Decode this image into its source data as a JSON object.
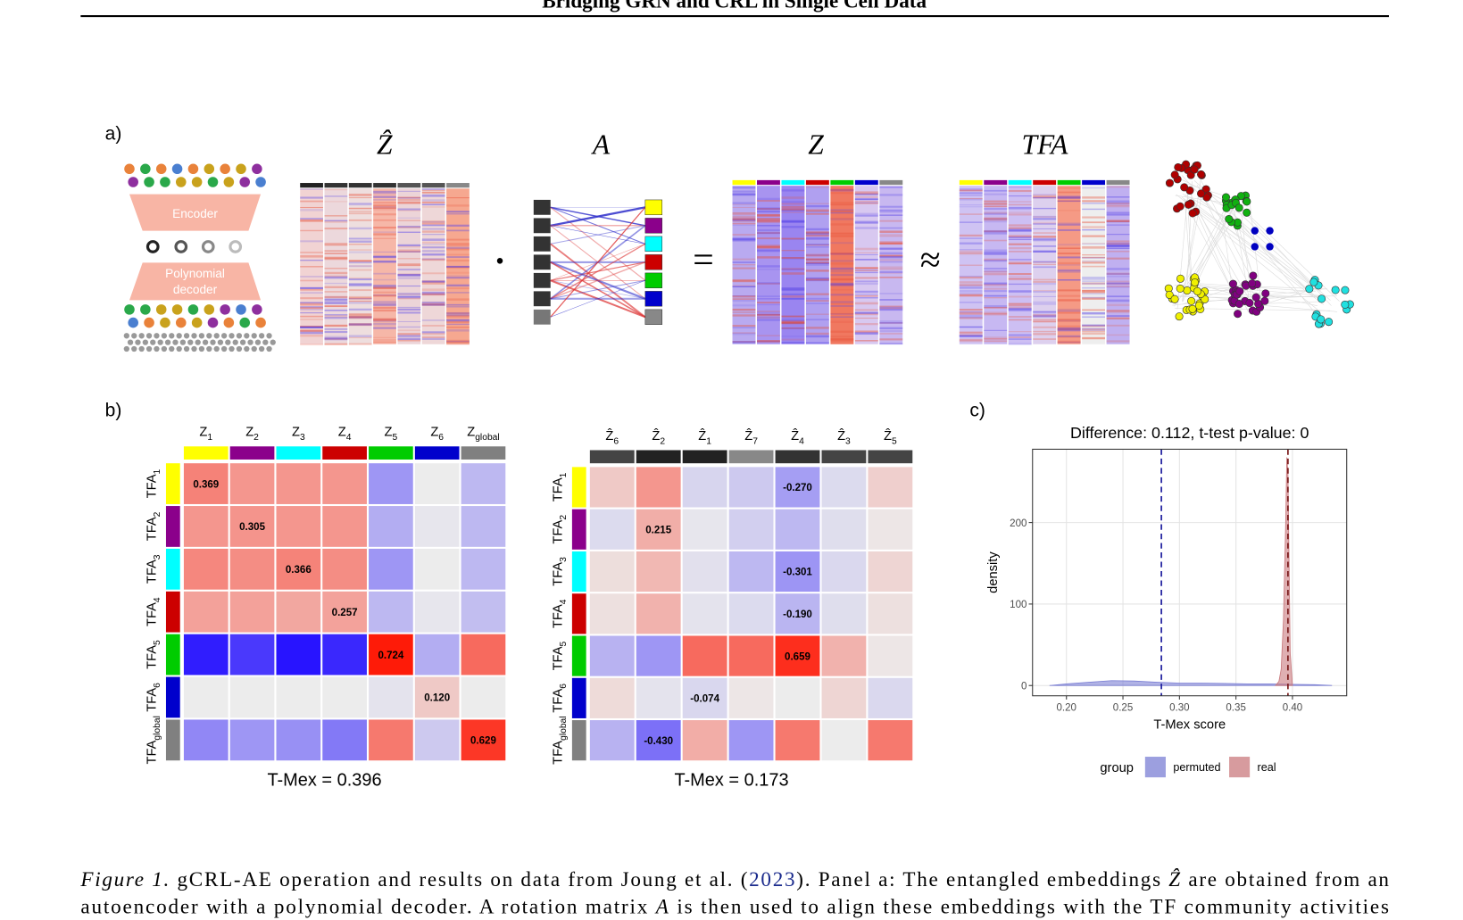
{
  "header": {
    "title": "Bridging GRN and CRL in Single Cell Data"
  },
  "panel_labels": [
    "a)",
    "b)",
    "c)"
  ],
  "figure_a": {
    "encoder": "Encoder",
    "decoder": [
      "Polynomial",
      "decoder"
    ],
    "titles": [
      "Ẑ",
      "A",
      "Z",
      "TFA"
    ],
    "operators": [
      "•",
      "=",
      "≈"
    ]
  },
  "chart_data": [
    {
      "type": "heatmap",
      "x_labels": [
        {
          "base": "Z",
          "sub": "1"
        },
        {
          "base": "Z",
          "sub": "2"
        },
        {
          "base": "Z",
          "sub": "3"
        },
        {
          "base": "Z",
          "sub": "4"
        },
        {
          "base": "Z",
          "sub": "5"
        },
        {
          "base": "Z",
          "sub": "6"
        },
        {
          "base": "Z",
          "sub": "global"
        }
      ],
      "y_labels": [
        {
          "base": "TFA",
          "sub": "1"
        },
        {
          "base": "TFA",
          "sub": "2"
        },
        {
          "base": "TFA",
          "sub": "3"
        },
        {
          "base": "TFA",
          "sub": "4"
        },
        {
          "base": "TFA",
          "sub": "5"
        },
        {
          "base": "TFA",
          "sub": "6"
        },
        {
          "base": "TFA",
          "sub": "global"
        }
      ],
      "col_colors": [
        "#ffff00",
        "#8b008b",
        "#00ffff",
        "#cc0000",
        "#00cc00",
        "#0000cc",
        "#808080"
      ],
      "row_colors": [
        "#ffff00",
        "#8b008b",
        "#00ffff",
        "#cc0000",
        "#00cc00",
        "#0000cc",
        "#808080"
      ],
      "color_range": [
        -0.75,
        0.75
      ],
      "values": [
        [
          0.369,
          0.3,
          0.3,
          0.3,
          -0.3,
          0.0,
          -0.18
        ],
        [
          0.3,
          0.305,
          0.3,
          0.3,
          -0.22,
          -0.02,
          -0.18
        ],
        [
          0.35,
          0.33,
          0.366,
          0.33,
          -0.3,
          0.0,
          -0.18
        ],
        [
          0.26,
          0.26,
          0.24,
          0.257,
          -0.18,
          -0.02,
          -0.16
        ],
        [
          -0.72,
          -0.62,
          -0.75,
          -0.68,
          0.724,
          -0.22,
          0.45
        ],
        [
          0.0,
          0.0,
          0.0,
          0.0,
          -0.03,
          0.12,
          0.0
        ],
        [
          -0.35,
          -0.3,
          -0.32,
          -0.4,
          0.4,
          -0.12,
          0.629
        ]
      ],
      "value_labels": [
        [
          "0.369",
          null,
          null,
          null,
          null,
          null,
          null
        ],
        [
          null,
          "0.305",
          null,
          null,
          null,
          null,
          null
        ],
        [
          null,
          null,
          "0.366",
          null,
          null,
          null,
          null
        ],
        [
          null,
          null,
          null,
          "0.257",
          null,
          null,
          null
        ],
        [
          null,
          null,
          null,
          null,
          "0.724",
          null,
          null
        ],
        [
          null,
          null,
          null,
          null,
          null,
          "0.120",
          null
        ],
        [
          null,
          null,
          null,
          null,
          null,
          null,
          "0.629"
        ]
      ],
      "caption": "T-Mex = 0.396"
    },
    {
      "type": "heatmap",
      "x_labels": [
        {
          "base": "Ẑ",
          "sub": "6"
        },
        {
          "base": "Ẑ",
          "sub": "2"
        },
        {
          "base": "Ẑ",
          "sub": "1"
        },
        {
          "base": "Ẑ",
          "sub": "7"
        },
        {
          "base": "Ẑ",
          "sub": "4"
        },
        {
          "base": "Ẑ",
          "sub": "3"
        },
        {
          "base": "Ẑ",
          "sub": "5"
        }
      ],
      "y_labels": [
        {
          "base": "TFA",
          "sub": "1"
        },
        {
          "base": "TFA",
          "sub": "2"
        },
        {
          "base": "TFA",
          "sub": "3"
        },
        {
          "base": "TFA",
          "sub": "4"
        },
        {
          "base": "TFA",
          "sub": "5"
        },
        {
          "base": "TFA",
          "sub": "6"
        },
        {
          "base": "TFA",
          "sub": "global"
        }
      ],
      "col_colors": [
        "#444444",
        "#222222",
        "#222222",
        "#888888",
        "#333333",
        "#444444",
        "#444444"
      ],
      "row_colors": [
        "#ffff00",
        "#8b008b",
        "#00ffff",
        "#cc0000",
        "#00cc00",
        "#0000cc",
        "#808080"
      ],
      "color_range": [
        -0.75,
        0.75
      ],
      "values": [
        [
          0.12,
          0.3,
          -0.08,
          -0.12,
          -0.27,
          -0.06,
          0.1
        ],
        [
          -0.06,
          0.215,
          -0.02,
          -0.1,
          -0.18,
          -0.05,
          0.02
        ],
        [
          0.05,
          0.18,
          -0.04,
          -0.18,
          -0.301,
          -0.07,
          0.08
        ],
        [
          0.04,
          0.2,
          -0.03,
          -0.06,
          -0.19,
          -0.05,
          0.04
        ],
        [
          -0.2,
          -0.3,
          0.45,
          0.45,
          0.659,
          0.2,
          0.02
        ],
        [
          0.06,
          -0.03,
          -0.074,
          0.02,
          0.0,
          0.08,
          -0.07
        ],
        [
          -0.2,
          -0.43,
          0.22,
          -0.3,
          0.4,
          0.0,
          0.4
        ]
      ],
      "value_labels": [
        [
          null,
          null,
          null,
          null,
          "-0.270",
          null,
          null
        ],
        [
          null,
          "0.215",
          null,
          null,
          null,
          null,
          null
        ],
        [
          null,
          null,
          null,
          null,
          "-0.301",
          null,
          null
        ],
        [
          null,
          null,
          null,
          null,
          "-0.190",
          null,
          null
        ],
        [
          null,
          null,
          null,
          null,
          "0.659",
          null,
          null
        ],
        [
          null,
          null,
          "-0.074",
          null,
          null,
          null,
          null
        ],
        [
          null,
          "-0.430",
          null,
          null,
          null,
          null,
          null
        ]
      ],
      "caption": "T-Mex = 0.173"
    },
    {
      "type": "density",
      "title": "Difference: 0.112, t-test p-value: 0",
      "xlabel": "T-Mex score",
      "ylabel": "density",
      "xlim": [
        0.17,
        0.448
      ],
      "ylim": [
        -12.6,
        290
      ],
      "xticks": [
        {
          "value": 0.2,
          "label": "0.20"
        },
        0.25,
        {
          "value": 0.3,
          "label": "0.30"
        },
        0.35,
        {
          "value": 0.4,
          "label": "0.40"
        }
      ],
      "yticks": [
        0,
        100,
        200
      ],
      "grid": true,
      "legend": "bottom",
      "legend_title": "group",
      "series": [
        {
          "name": "permuted",
          "color": "#7b7fd4",
          "mean": 0.284,
          "x": [
            0.185,
            0.2,
            0.22,
            0.24,
            0.26,
            0.28,
            0.3,
            0.32,
            0.34,
            0.36,
            0.38,
            0.4,
            0.42,
            0.435
          ],
          "values": [
            0,
            2,
            4,
            6,
            5.5,
            4,
            3,
            3,
            2.5,
            2,
            2,
            1.5,
            1,
            0
          ]
        },
        {
          "name": "real",
          "color": "#c97a7e",
          "mean": 0.396,
          "x": [
            0.385,
            0.388,
            0.39,
            0.392,
            0.394,
            0.395,
            0.396,
            0.397,
            0.398,
            0.4
          ],
          "values": [
            0,
            5,
            20,
            80,
            200,
            280,
            260,
            150,
            40,
            0
          ]
        }
      ]
    }
  ],
  "caption": {
    "segments": [
      "Figure 1.",
      " gCRL-AE operation and results on data from Joung et al. (",
      "2023",
      "). Panel a: The entangled embeddings ",
      "Ẑ",
      " are obtained from an",
      "autoencoder with a polynomial decoder. A rotation matrix ",
      "A",
      " is then used to align these embeddings with the TF community activities"
    ]
  }
}
